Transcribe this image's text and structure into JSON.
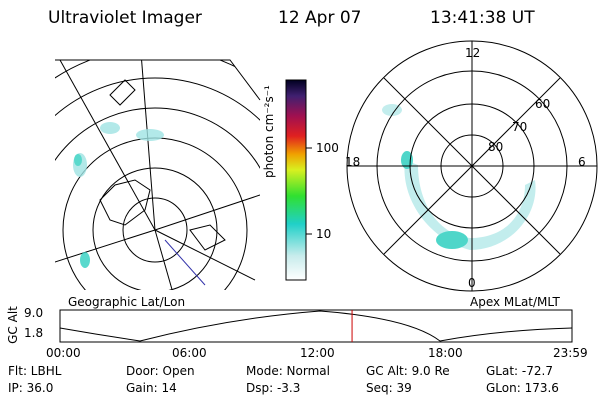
{
  "header": {
    "instrument": "Ultraviolet Imager",
    "date": "12 Apr 07",
    "time": "13:41:38 UT"
  },
  "colorbar": {
    "unit_label": "photon cm⁻²s⁻¹",
    "ticks": [
      "100",
      "10"
    ]
  },
  "geo_map": {
    "caption": "Geographic Lat/Lon"
  },
  "polar_map": {
    "caption": "Apex MLat/MLT",
    "mlt_labels": [
      "12",
      "18",
      "6",
      "0"
    ],
    "lat_labels": [
      "60",
      "70",
      "80"
    ]
  },
  "timeline": {
    "ylabel": "GC Alt",
    "yticks": [
      "9.0",
      "1.8"
    ],
    "xticks": [
      "00:00",
      "06:00",
      "12:00",
      "18:00",
      "23:59"
    ],
    "current_marker_hour": 13.69
  },
  "status": {
    "filter": "Flt: LBHL",
    "ip": "IP: 36.0",
    "door": "Door: Open",
    "gain": "Gain: 14",
    "mode": "Mode: Normal",
    "dsp": "Dsp:     -3.3",
    "gcalt": "GC Alt: 9.0 Re",
    "seq": "Seq: 39",
    "glat": "GLat: -72.7",
    "glon": "GLon: 173.6"
  },
  "colors": {
    "background": "#ffffff",
    "line": "#000000",
    "marker": "#cc0000",
    "aurora": "#7fd8d8"
  }
}
